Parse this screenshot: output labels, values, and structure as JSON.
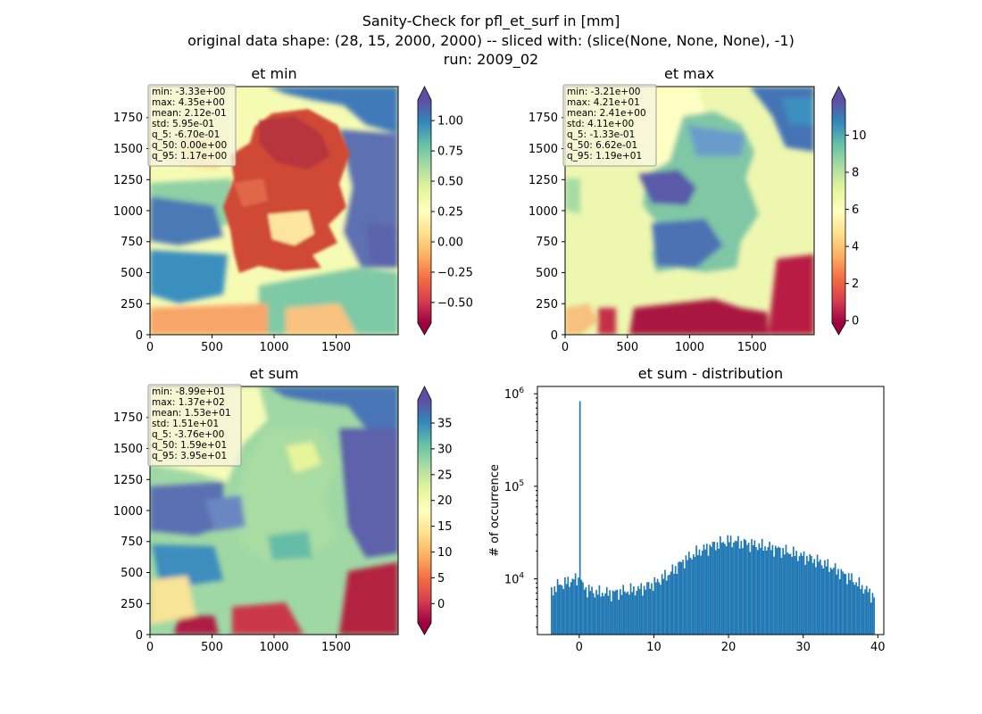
{
  "figure": {
    "title_lines": [
      "Sanity-Check for pfl_et_surf in [mm]",
      "original data shape: (28, 15, 2000, 2000) -- sliced with: (slice(None, None, None), -1)",
      "run: 2009_02"
    ]
  },
  "maps": [
    {
      "title": "et min",
      "x_ticks": [
        "0",
        "500",
        "1000",
        "1500"
      ],
      "y_ticks": [
        "0",
        "250",
        "500",
        "750",
        "1000",
        "1250",
        "1500",
        "1750"
      ],
      "stats": [
        "min: -3.33e+00",
        "max: 4.35e+00",
        "mean: 2.12e-01",
        "std: 5.95e-01",
        "q_5: -6.70e-01",
        "q_50: 0.00e+00",
        "q_95: 1.17e+00"
      ],
      "colorbar": {
        "vmin": -0.67,
        "vmax": 1.17,
        "ticks": [
          -0.5,
          -0.25,
          0.0,
          0.25,
          0.5,
          0.75,
          1.0
        ],
        "tick_labels": [
          "−0.50",
          "−0.25",
          "0.00",
          "0.25",
          "0.50",
          "0.75",
          "1.00"
        ]
      }
    },
    {
      "title": "et max",
      "x_ticks": [
        "0",
        "500",
        "1000",
        "1500"
      ],
      "y_ticks": [
        "0",
        "250",
        "500",
        "750",
        "1000",
        "1250",
        "1500",
        "1750"
      ],
      "stats": [
        "min: -3.21e+00",
        "max: 4.21e+01",
        "mean: 2.41e+00",
        "std: 4.11e+00",
        "q_5: -1.33e-01",
        "q_50: 6.62e-01",
        "q_95: 1.19e+01"
      ],
      "colorbar": {
        "vmin": -0.133,
        "vmax": 11.9,
        "ticks": [
          0,
          2,
          4,
          6,
          8,
          10
        ],
        "tick_labels": [
          "0",
          "2",
          "4",
          "6",
          "8",
          "10"
        ]
      }
    },
    {
      "title": "et sum",
      "x_ticks": [
        "0",
        "500",
        "1000",
        "1500"
      ],
      "y_ticks": [
        "0",
        "250",
        "500",
        "750",
        "1000",
        "1250",
        "1500",
        "1750"
      ],
      "stats": [
        "min: -8.99e+01",
        "max: 1.37e+02",
        "mean: 1.53e+01",
        "std: 1.51e+01",
        "q_5: -3.76e+00",
        "q_50: 1.59e+01",
        "q_95: 3.95e+01"
      ],
      "colorbar": {
        "vmin": -3.76,
        "vmax": 39.5,
        "ticks": [
          0,
          5,
          10,
          15,
          20,
          25,
          30,
          35
        ],
        "tick_labels": [
          "0",
          "5",
          "10",
          "15",
          "20",
          "25",
          "30",
          "35"
        ]
      }
    }
  ],
  "colormap": {
    "name": "Spectral",
    "extend": "both",
    "stops": [
      "#9e0142",
      "#d53e4f",
      "#f46d43",
      "#fdae61",
      "#fee08b",
      "#ffffbf",
      "#e6f598",
      "#abdda4",
      "#66c2a5",
      "#3288bd",
      "#5e4fa2"
    ]
  },
  "chart_data": {
    "type": "bar",
    "title": "et sum - distribution",
    "xlabel": "",
    "ylabel": "# of occurrence",
    "yscale": "log",
    "xlim": [
      -5.6,
      40.8
    ],
    "ylim": [
      2500,
      1200000
    ],
    "x_ticks": [
      0,
      10,
      20,
      30,
      40
    ],
    "y_tick_labels": [
      "10^4",
      "10^5",
      "10^6"
    ],
    "bar_color": "#1f77b4",
    "bin_width": 0.2,
    "spike": {
      "x": 0,
      "value": 830000
    },
    "bins_x_range": [
      -3.8,
      39.4
    ],
    "profile": [
      [
        -3.8,
        7500
      ],
      [
        -3.0,
        8500
      ],
      [
        -2.0,
        9000
      ],
      [
        -1.0,
        9800
      ],
      [
        -0.2,
        10000
      ],
      [
        0.6,
        8000
      ],
      [
        2.0,
        7200
      ],
      [
        4.0,
        7000
      ],
      [
        6.0,
        7400
      ],
      [
        8.0,
        7800
      ],
      [
        10.0,
        9000
      ],
      [
        12.0,
        11500
      ],
      [
        14.0,
        16000
      ],
      [
        16.0,
        20000
      ],
      [
        18.0,
        23500
      ],
      [
        20.0,
        26000
      ],
      [
        22.0,
        24500
      ],
      [
        24.0,
        23000
      ],
      [
        26.0,
        21500
      ],
      [
        28.0,
        19500
      ],
      [
        30.0,
        17500
      ],
      [
        32.0,
        15500
      ],
      [
        34.0,
        13000
      ],
      [
        36.0,
        10500
      ],
      [
        38.0,
        8000
      ],
      [
        39.4,
        6500
      ]
    ]
  }
}
